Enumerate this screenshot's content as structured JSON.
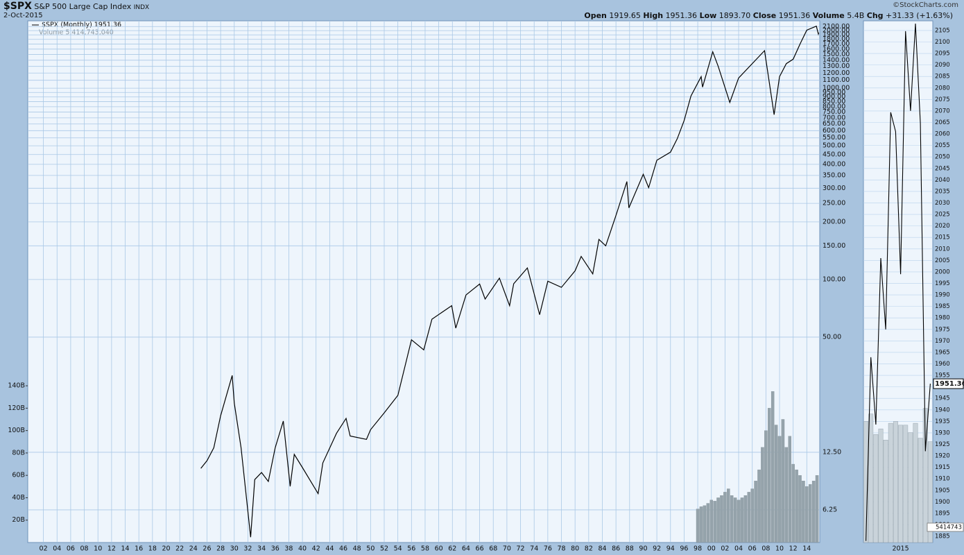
{
  "header": {
    "symbol": "$SPX",
    "name": "S&P 500 Large Cap Index",
    "exchange": "INDX",
    "date": "2-Oct-2015",
    "credit": "©StockCharts.com",
    "quote": [
      {
        "label": "Open",
        "value": "1919.65"
      },
      {
        "label": "High",
        "value": "1951.36"
      },
      {
        "label": "Low",
        "value": "1893.70"
      },
      {
        "label": "Close",
        "value": "1951.36"
      },
      {
        "label": "Volume",
        "value": "5.4B"
      },
      {
        "label": "Chg",
        "value": "+31.33 (+1.63%)"
      }
    ]
  },
  "chart_data": [
    {
      "type": "line",
      "log": true,
      "grid": true,
      "series": [
        {
          "name": "$SPX (Monthly) 1951.36",
          "color": "#000000",
          "x": [
            1925.1,
            1926,
            1927,
            1928,
            1929.7,
            1930,
            1931,
            1932.4,
            1933,
            1934,
            1935,
            1936,
            1937.2,
            1938.2,
            1938.8,
            1940,
            1942.3,
            1943,
            1945,
            1946.4,
            1947,
            1949.4,
            1950,
            1952,
            1954,
            1956,
            1957.8,
            1959,
            1961.9,
            1962.5,
            1964,
            1966,
            1966.8,
            1968.9,
            1970.4,
            1971,
            1973,
            1974.8,
            1976,
            1978,
            1980,
            1980.9,
            1982.6,
            1983.5,
            1984.5,
            1986,
            1987.6,
            1987.9,
            1990,
            1990.8,
            1992,
            1994,
            1995,
            1996,
            1997,
            1998.5,
            1998.7,
            2000.2,
            2001,
            2002.7,
            2004,
            2007.8,
            2009.2,
            2010,
            2011,
            2012,
            2013,
            2014,
            2015.4,
            2015.7,
            2015.75
          ],
          "values": [
            10.3,
            11.3,
            13.2,
            19.4,
            31.5,
            22.6,
            13.2,
            4.5,
            9.0,
            9.8,
            8.8,
            13.2,
            18.2,
            8.3,
            12.2,
            10.4,
            7.6,
            11.0,
            15.7,
            18.8,
            15.2,
            14.6,
            16.4,
            20.1,
            24.8,
            48.4,
            42.9,
            62,
            73,
            55.7,
            83,
            94.7,
            79,
            101.7,
            73,
            95,
            115,
            65.5,
            98,
            91,
            111,
            132,
            107,
            162,
            150,
            216,
            325,
            237,
            355,
            302,
            420,
            463,
            545,
            676,
            911,
            1149,
            1013,
            1550,
            1300,
            843,
            1131,
            1571,
            727,
            1149,
            1344,
            1418,
            1700,
            2010,
            2110,
            1920,
            1951.36
          ]
        }
      ],
      "xlim": [
        1899.7,
        2015.9
      ],
      "xticks": [
        {
          "value": 1902,
          "label": "02"
        },
        {
          "value": 1904,
          "label": "04"
        },
        {
          "value": 1906,
          "label": "06"
        },
        {
          "value": 1908,
          "label": "08"
        },
        {
          "value": 1910,
          "label": "10"
        },
        {
          "value": 1912,
          "label": "12"
        },
        {
          "value": 1914,
          "label": "14"
        },
        {
          "value": 1916,
          "label": "16"
        },
        {
          "value": 1918,
          "label": "18"
        },
        {
          "value": 1920,
          "label": "20"
        },
        {
          "value": 1922,
          "label": "22"
        },
        {
          "value": 1924,
          "label": "24"
        },
        {
          "value": 1926,
          "label": "26"
        },
        {
          "value": 1928,
          "label": "28"
        },
        {
          "value": 1930,
          "label": "30"
        },
        {
          "value": 1932,
          "label": "32"
        },
        {
          "value": 1934,
          "label": "34"
        },
        {
          "value": 1936,
          "label": "36"
        },
        {
          "value": 1938,
          "label": "38"
        },
        {
          "value": 1940,
          "label": "40"
        },
        {
          "value": 1942,
          "label": "42"
        },
        {
          "value": 1944,
          "label": "44"
        },
        {
          "value": 1946,
          "label": "46"
        },
        {
          "value": 1948,
          "label": "48"
        },
        {
          "value": 1950,
          "label": "50"
        },
        {
          "value": 1952,
          "label": "52"
        },
        {
          "value": 1954,
          "label": "54"
        },
        {
          "value": 1956,
          "label": "56"
        },
        {
          "value": 1958,
          "label": "58"
        },
        {
          "value": 1960,
          "label": "60"
        },
        {
          "value": 1962,
          "label": "62"
        },
        {
          "value": 1964,
          "label": "64"
        },
        {
          "value": 1966,
          "label": "66"
        },
        {
          "value": 1968,
          "label": "68"
        },
        {
          "value": 1970,
          "label": "70"
        },
        {
          "value": 1972,
          "label": "72"
        },
        {
          "value": 1974,
          "label": "74"
        },
        {
          "value": 1976,
          "label": "76"
        },
        {
          "value": 1978,
          "label": "78"
        },
        {
          "value": 1980,
          "label": "80"
        },
        {
          "value": 1982,
          "label": "82"
        },
        {
          "value": 1984,
          "label": "84"
        },
        {
          "value": 1986,
          "label": "86"
        },
        {
          "value": 1988,
          "label": "88"
        },
        {
          "value": 1990,
          "label": "90"
        },
        {
          "value": 1992,
          "label": "92"
        },
        {
          "value": 1994,
          "label": "94"
        },
        {
          "value": 1996,
          "label": "96"
        },
        {
          "value": 1998,
          "label": "98"
        },
        {
          "value": 2000,
          "label": "00"
        },
        {
          "value": 2002,
          "label": "02"
        },
        {
          "value": 2004,
          "label": "04"
        },
        {
          "value": 2006,
          "label": "06"
        },
        {
          "value": 2008,
          "label": "08"
        },
        {
          "value": 2010,
          "label": "10"
        },
        {
          "value": 2012,
          "label": "12"
        },
        {
          "value": 2014,
          "label": "14"
        }
      ],
      "ylim": [
        4.22,
        2250
      ],
      "yticks": [
        6.25,
        {
          "value": 12.5,
          "label": "12.50"
        },
        {
          "value": 50,
          "label": "50.00"
        },
        {
          "value": 100,
          "label": "100.00"
        },
        {
          "value": 150,
          "label": "150.00"
        },
        {
          "value": 200,
          "label": "200.00"
        },
        {
          "value": 250,
          "label": "250.00"
        },
        {
          "value": 300,
          "label": "300.00"
        },
        {
          "value": 350,
          "label": "350.00"
        },
        {
          "value": 400,
          "label": "400.00"
        },
        {
          "value": 450,
          "label": "450.00"
        },
        {
          "value": 500,
          "label": "500.00"
        },
        {
          "value": 550,
          "label": "550.00"
        },
        {
          "value": 600,
          "label": "600.00"
        },
        {
          "value": 650,
          "label": "650.00"
        },
        {
          "value": 700,
          "label": "700.00"
        },
        {
          "value": 750,
          "label": "750.00"
        },
        {
          "value": 800,
          "label": "800.00"
        },
        {
          "value": 850,
          "label": "850.00"
        },
        {
          "value": 900,
          "label": "900.00"
        },
        {
          "value": 950,
          "label": "950.00"
        },
        {
          "value": 1000,
          "label": "1000.00"
        },
        {
          "value": 1100,
          "label": "1100.00"
        },
        {
          "value": 1200,
          "label": "1200.00"
        },
        {
          "value": 1300,
          "label": "1300.00"
        },
        {
          "value": 1400,
          "label": "1400.00"
        },
        {
          "value": 1500,
          "label": "1500.00"
        },
        {
          "value": 1600,
          "label": "1600.00"
        },
        {
          "value": 1700,
          "label": "1700.00"
        },
        {
          "value": 1800,
          "label": "1800.00"
        },
        {
          "value": 1900,
          "label": "1900.00"
        },
        {
          "value": 2000,
          "label": "2000.00"
        },
        {
          "value": 2100,
          "label": "2100.00"
        }
      ]
    },
    {
      "type": "bar",
      "series": [
        {
          "name": "Volume 5,414,743,040",
          "color": "#95a3ab",
          "x": [
            1998,
            1998.5,
            1999,
            1999.5,
            2000,
            2000.5,
            2001,
            2001.5,
            2002,
            2002.5,
            2003,
            2003.5,
            2004,
            2004.5,
            2005,
            2005.5,
            2006,
            2006.5,
            2007,
            2007.5,
            2008,
            2008.5,
            2009,
            2009.5,
            2010,
            2010.5,
            2011,
            2011.5,
            2012,
            2012.5,
            2013,
            2013.5,
            2014,
            2014.5,
            2015,
            2015.5
          ],
          "values": [
            30,
            32,
            33,
            35,
            38,
            37,
            40,
            42,
            45,
            48,
            42,
            40,
            38,
            40,
            42,
            45,
            48,
            55,
            65,
            85,
            100,
            120,
            135,
            105,
            95,
            110,
            85,
            95,
            70,
            65,
            60,
            55,
            50,
            52,
            55,
            60
          ]
        }
      ],
      "ylim": [
        0,
        466
      ],
      "yticks": [
        {
          "value": 20,
          "label": "20B"
        },
        {
          "value": 40,
          "label": "40B"
        },
        {
          "value": 60,
          "label": "60B"
        },
        {
          "value": 80,
          "label": "80B"
        },
        {
          "value": 100,
          "label": "100B"
        },
        {
          "value": 120,
          "label": "120B"
        },
        {
          "value": 140,
          "label": "140B"
        }
      ]
    },
    {
      "type": "line",
      "grid": true,
      "categories": [
        null,
        null,
        null,
        null,
        null,
        null,
        null,
        "2015",
        null,
        null,
        null,
        null,
        null,
        null
      ],
      "series": [
        {
          "color": "#000000",
          "values": [
            1883,
            1962.9,
            1933.6,
            2006,
            1975,
            2069.4,
            2061,
            1999,
            2104.7,
            2070,
            2108,
            2064.6,
            1922,
            1951.36
          ]
        }
      ],
      "ylim": [
        1882.3,
        2109.2
      ],
      "yticks": [
        1885,
        1890,
        1895,
        1900,
        1905,
        1910,
        1915,
        1920,
        1925,
        1930,
        1935,
        1940,
        1945,
        1950,
        1955,
        1960,
        1965,
        1970,
        1975,
        1980,
        1985,
        1990,
        1995,
        2000,
        2005,
        2010,
        2015,
        2020,
        2025,
        2030,
        2035,
        2040,
        2045,
        2050,
        2055,
        2060,
        2065,
        2070,
        2075,
        2080,
        2085,
        2090,
        2095,
        2100,
        2105
      ]
    },
    {
      "type": "bar",
      "color": "#c9d3da",
      "values": [
        6500000,
        6900000,
        5800000,
        6100000,
        5500000,
        6400000,
        6500000,
        6300000,
        6300000,
        5900000,
        6400000,
        5600000,
        7200000,
        5414743
      ],
      "ylim": [
        0,
        28000000
      ]
    }
  ]
}
